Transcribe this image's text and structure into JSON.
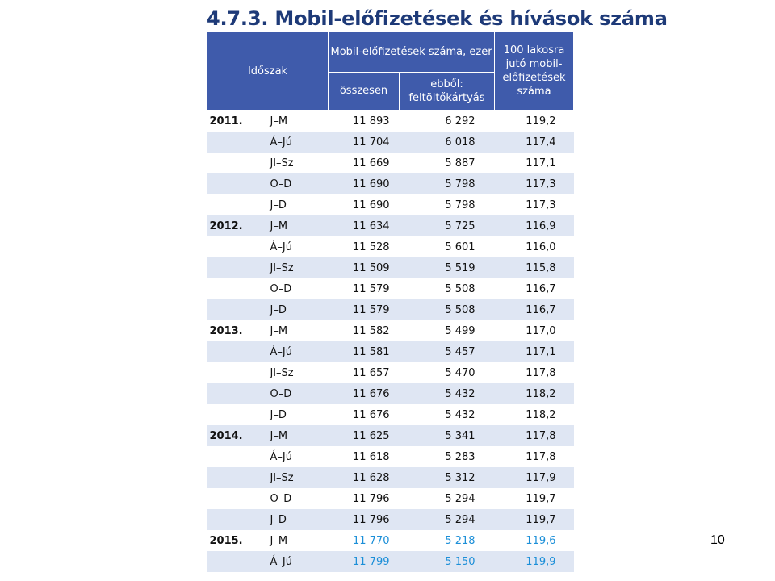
{
  "title": "4.7.3. Mobil-előfizetések és hívások száma",
  "page_number": "10",
  "colors": {
    "title": "#1e3a78",
    "header_bg": "#3f5bab",
    "header_text": "#ffffff",
    "row_shade": "#dfe6f3",
    "estimate_text": "#1c8fd8"
  },
  "table": {
    "headers": {
      "period": "Időszak",
      "subscriptions_group": "Mobil-előfizetések száma, ezer",
      "total": "összesen",
      "prepaid": "ebből: feltöltőkártyás",
      "per_100": "100 lakosra jutó mobil-előfizetések száma"
    },
    "rows": [
      {
        "year": "2011.",
        "period": "J–M",
        "total": "11 893",
        "prepaid": "6 292",
        "per_100": "119,2"
      },
      {
        "year": "",
        "period": "Á–Jú",
        "total": "11 704",
        "prepaid": "6 018",
        "per_100": "117,4"
      },
      {
        "year": "",
        "period": "Jl–Sz",
        "total": "11 669",
        "prepaid": "5 887",
        "per_100": "117,1"
      },
      {
        "year": "",
        "period": "O–D",
        "total": "11 690",
        "prepaid": "5 798",
        "per_100": "117,3"
      },
      {
        "year": "",
        "period": "J–D",
        "total": "11 690",
        "prepaid": "5 798",
        "per_100": "117,3"
      },
      {
        "year": "2012.",
        "period": "J–M",
        "total": "11 634",
        "prepaid": "5 725",
        "per_100": "116,9"
      },
      {
        "year": "",
        "period": "Á–Jú",
        "total": "11 528",
        "prepaid": "5 601",
        "per_100": "116,0"
      },
      {
        "year": "",
        "period": "Jl–Sz",
        "total": "11 509",
        "prepaid": "5 519",
        "per_100": "115,8"
      },
      {
        "year": "",
        "period": "O–D",
        "total": "11 579",
        "prepaid": "5 508",
        "per_100": "116,7"
      },
      {
        "year": "",
        "period": "J–D",
        "total": "11 579",
        "prepaid": "5 508",
        "per_100": "116,7"
      },
      {
        "year": "2013.",
        "period": "J–M",
        "total": "11 582",
        "prepaid": "5 499",
        "per_100": "117,0"
      },
      {
        "year": "",
        "period": "Á–Jú",
        "total": "11 581",
        "prepaid": "5 457",
        "per_100": "117,1"
      },
      {
        "year": "",
        "period": "Jl–Sz",
        "total": "11 657",
        "prepaid": "5 470",
        "per_100": "117,8"
      },
      {
        "year": "",
        "period": "O–D",
        "total": "11 676",
        "prepaid": "5 432",
        "per_100": "118,2"
      },
      {
        "year": "",
        "period": "J–D",
        "total": "11 676",
        "prepaid": "5 432",
        "per_100": "118,2"
      },
      {
        "year": "2014.",
        "period": "J–M",
        "total": "11 625",
        "prepaid": "5 341",
        "per_100": "117,8"
      },
      {
        "year": "",
        "period": "Á–Jú",
        "total": "11 618",
        "prepaid": "5 283",
        "per_100": "117,8"
      },
      {
        "year": "",
        "period": "Jl–Sz",
        "total": "11 628",
        "prepaid": "5 312",
        "per_100": "117,9"
      },
      {
        "year": "",
        "period": "O–D",
        "total": "11 796",
        "prepaid": "5 294",
        "per_100": "119,7"
      },
      {
        "year": "",
        "period": "J–D",
        "total": "11 796",
        "prepaid": "5 294",
        "per_100": "119,7"
      },
      {
        "year": "2015.",
        "period": "J–M",
        "total": "11 770",
        "prepaid": "5 218",
        "per_100": "119,6",
        "highlight": true
      },
      {
        "year": "",
        "period": "Á–Jú",
        "total": "11 799",
        "prepaid": "5 150",
        "per_100": "119,9",
        "highlight": true
      }
    ]
  }
}
